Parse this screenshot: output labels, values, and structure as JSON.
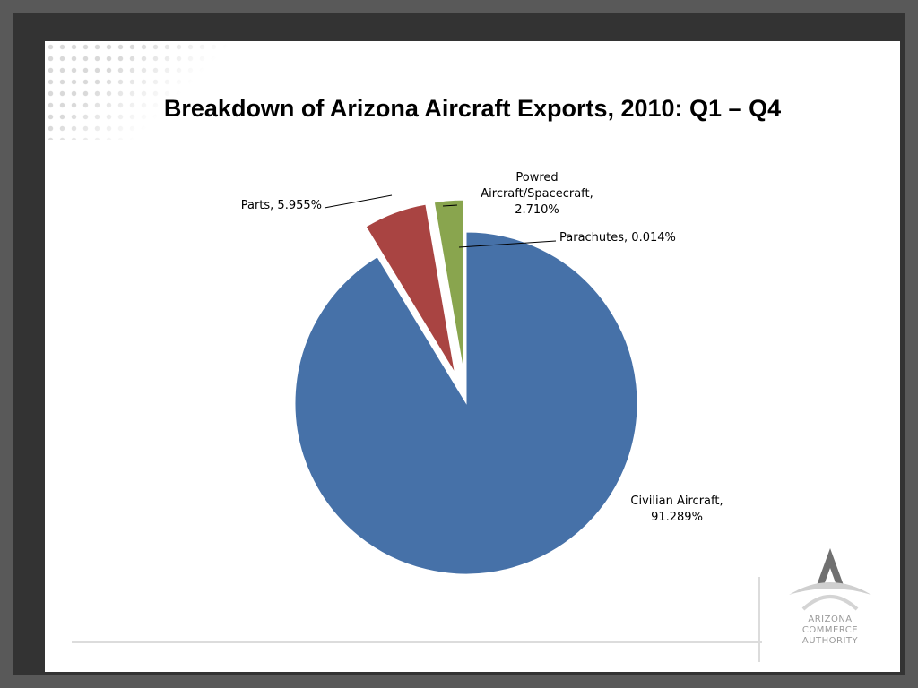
{
  "slide": {
    "title": "Breakdown of Arizona Aircraft Exports, 2010: Q1 – Q4"
  },
  "chart_data": {
    "type": "pie",
    "title": "Breakdown of Arizona Aircraft Exports, 2010: Q1 – Q4",
    "slices": [
      {
        "name": "Civilian Aircraft",
        "value": 91.289,
        "color": "#4671A8",
        "exploded": false,
        "label_lines": [
          "Civilian Aircraft,",
          "91.289%"
        ]
      },
      {
        "name": "Parts",
        "value": 5.955,
        "color": "#A94442",
        "exploded": true,
        "label_lines": [
          "Parts, 5.955%"
        ]
      },
      {
        "name": "Powred Aircraft/Spacecraft",
        "value": 2.71,
        "color": "#89A54E",
        "exploded": true,
        "label_lines": [
          "Powred",
          "Aircraft/Spacecraft,",
          "2.710%"
        ]
      },
      {
        "name": "Parachutes",
        "value": 0.014,
        "color": "#7F62A0",
        "exploded": false,
        "label_lines": [
          "Parachutes, 0.014%"
        ]
      }
    ],
    "unit": "%",
    "legend": "none"
  },
  "logo": {
    "lines": [
      "ARIZONA",
      "COMMERCE",
      "AUTHORITY"
    ],
    "color": "#9a9a9a"
  }
}
